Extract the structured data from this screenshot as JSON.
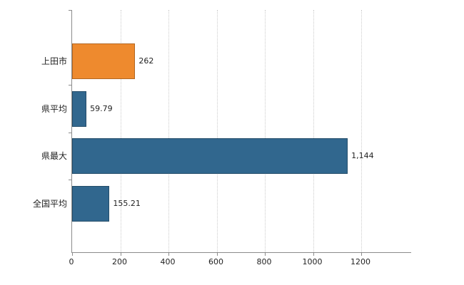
{
  "chart_data": {
    "type": "bar",
    "orientation": "horizontal",
    "title": "",
    "xlabel": "",
    "ylabel": "",
    "categories": [
      "上田市",
      "県平均",
      "県最大",
      "全国平均"
    ],
    "values": [
      262,
      59.79,
      1144,
      155.21
    ],
    "value_labels": [
      "262",
      "59.79",
      "1,144",
      "155.21"
    ],
    "bar_colors": [
      "#ee8a2e",
      "#31678e",
      "#31678e",
      "#31678e"
    ],
    "x_ticks": [
      0,
      200,
      400,
      600,
      800,
      1000,
      1200
    ],
    "xlim": [
      0,
      1400
    ],
    "grid": true,
    "legend": false
  },
  "colors": {
    "background": "#ffffff",
    "axis": "#8c8c8c",
    "grid": "#cccccc",
    "text": "#222222"
  }
}
